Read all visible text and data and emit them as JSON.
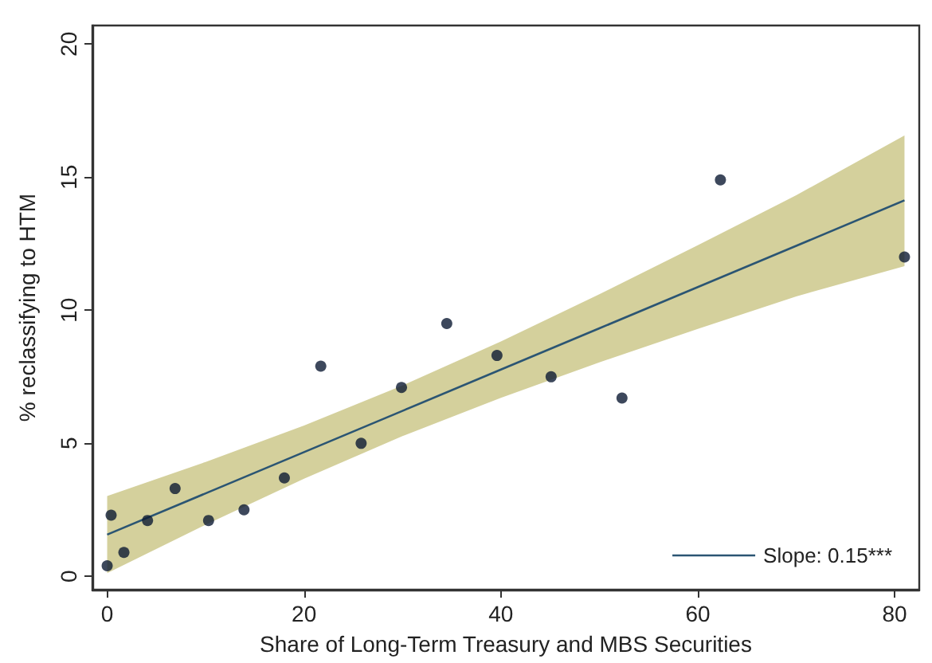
{
  "chart_data": {
    "type": "scatter",
    "xlabel": "Share of Long-Term Treasury and MBS Securities",
    "ylabel": "% reclassifying to HTM",
    "xlim": [
      -1.5,
      82.5
    ],
    "xticks": [
      0,
      20,
      40,
      60,
      80
    ],
    "ylim": [
      -0.5,
      20.7
    ],
    "yticks": [
      0,
      5,
      10,
      15,
      20
    ],
    "grid": false,
    "legend": "bottom right",
    "marker": "circle",
    "series": [
      {
        "color": "#0d1a33",
        "x": [
          0,
          0.4,
          1.7,
          4.1,
          6.9,
          10.3,
          13.9,
          18,
          21.7,
          25.8,
          29.9,
          34.5,
          39.6,
          45.1,
          52.3,
          62.3,
          81
        ],
        "values": [
          0.4,
          2.3,
          0.9,
          2.1,
          3.3,
          2.1,
          2.5,
          3.7,
          7.9,
          5,
          7.1,
          9.5,
          8.3,
          7.5,
          6.7,
          14.9,
          12
        ]
      },
      {
        "type": "line",
        "name": "Slope: 0.15***",
        "color": "#2b5573",
        "marker": "none",
        "x": [
          0,
          10,
          20,
          30,
          40,
          50,
          60,
          70,
          81
        ],
        "values": [
          1.57,
          3.12,
          4.67,
          6.22,
          7.77,
          9.32,
          10.87,
          12.42,
          14.13
        ],
        "lower": [
          0.12,
          1.94,
          3.67,
          5.27,
          6.71,
          8.04,
          9.3,
          10.52,
          11.66
        ],
        "upper": [
          3.02,
          4.3,
          5.67,
          7.17,
          8.83,
          10.6,
          12.44,
          14.32,
          16.57
        ]
      }
    ]
  }
}
